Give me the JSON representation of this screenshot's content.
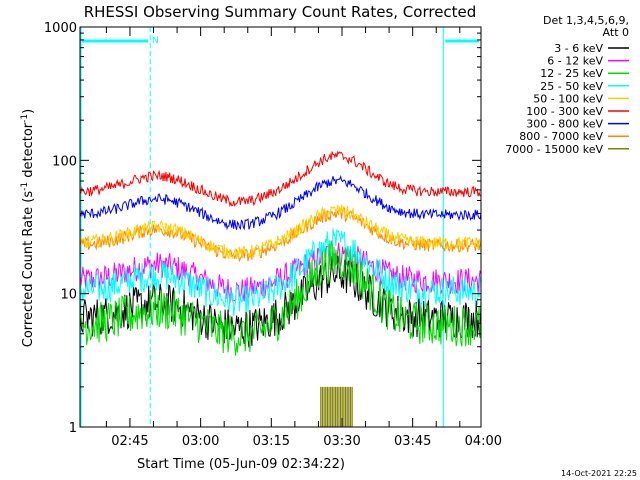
{
  "chart_data": {
    "type": "line",
    "title": "RHESSI Observing Summary Count Rates, Corrected",
    "xlabel": "Start Time (05-Jun-09 02:34:22)",
    "ylabel_main": "Corrected Count Rate (s",
    "ylabel_sup1": "-1",
    "ylabel_mid": " detector",
    "ylabel_sup2": "-1",
    "ylabel_end": ")",
    "yscale": "log",
    "ylim": [
      1,
      1000
    ],
    "yticks": [
      1,
      10,
      100,
      1000
    ],
    "ytick_labels": [
      "1",
      "10",
      "100",
      "1000"
    ],
    "xlim_min": [
      34.4,
      119.5
    ],
    "xtick_min": [
      45,
      60,
      75,
      90,
      105,
      120
    ],
    "xtick_labels": [
      "02:45",
      "03:00",
      "03:15",
      "03:30",
      "03:45",
      "04:00"
    ],
    "flag_label": "N",
    "night_regions_min": [
      [
        34.4,
        49.3
      ],
      [
        111.5,
        119.5
      ]
    ],
    "legend_header": [
      "Det 1,3,4,5,6,9,",
      "Att 0"
    ],
    "series": [
      {
        "name": "3 - 6 keV",
        "color": "#000000",
        "base": 6.5,
        "peak": 14,
        "noise": 0.15
      },
      {
        "name": "6 - 12 keV",
        "color": "#ff00ff",
        "base": 12.5,
        "peak": 20,
        "noise": 0.1
      },
      {
        "name": "12 - 25 keV",
        "color": "#00dd00",
        "base": 5.8,
        "peak": 18,
        "noise": 0.16
      },
      {
        "name": "25 - 50 keV",
        "color": "#00ffff",
        "base": 10.5,
        "peak": 24,
        "noise": 0.12
      },
      {
        "name": "50 - 100 keV",
        "color": "#ffcc00",
        "base": 24,
        "peak": 42,
        "noise": 0.05
      },
      {
        "name": "100 - 300 keV",
        "color": "#ff0000",
        "base": 58,
        "peak": 108,
        "noise": 0.04
      },
      {
        "name": "300 - 800 keV",
        "color": "#0000ff",
        "base": 39,
        "peak": 70,
        "noise": 0.04
      },
      {
        "name": "800 - 7000 keV",
        "color": "#ff8800",
        "base": 23,
        "peak": 40,
        "noise": 0.05
      },
      {
        "name": "7000 - 15000 keV",
        "color": "#808000",
        "base": 0,
        "peak": 2,
        "noise": 0
      }
    ],
    "footer_timestamp": "14-Oct-2021 22:25"
  }
}
